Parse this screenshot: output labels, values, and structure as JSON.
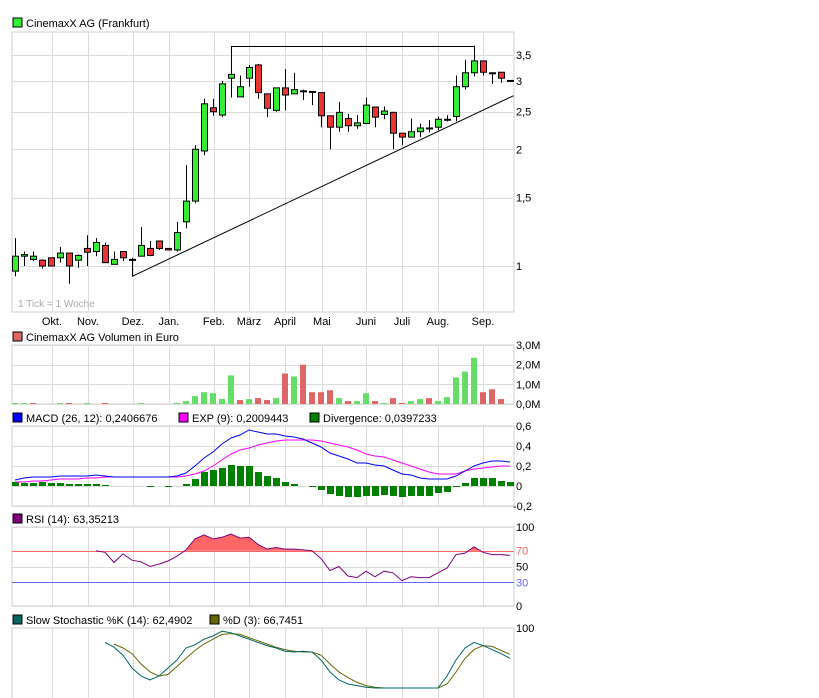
{
  "chart_data": [
    {
      "type": "candlestick",
      "title": "CinemaxX AG (Frankfurt)",
      "note": "1 Tick = 1 Woche",
      "scale": "log",
      "ylim": [
        0.85,
        3.95
      ],
      "yticks": [
        {
          "v": 3.5,
          "label": "3,5"
        },
        {
          "v": 3,
          "label": "3"
        },
        {
          "v": 2.5,
          "label": "2,5"
        },
        {
          "v": 2,
          "label": "2"
        },
        {
          "v": 1.5,
          "label": "1,5"
        },
        {
          "v": 1,
          "label": "1"
        }
      ],
      "months": [
        {
          "label": "Okt.",
          "week": 5.1
        },
        {
          "label": "Nov.",
          "week": 9.1
        },
        {
          "label": "Dez.",
          "week": 14.1
        },
        {
          "label": "Jan.",
          "week": 18.1
        },
        {
          "label": "Feb.",
          "week": 23.1
        },
        {
          "label": "März",
          "week": 27
        },
        {
          "label": "April",
          "week": 31
        },
        {
          "label": "Mai",
          "week": 35.1
        },
        {
          "label": "Juni",
          "week": 40
        },
        {
          "label": "Juli",
          "week": 44
        },
        {
          "label": "Aug.",
          "week": 48
        },
        {
          "label": "Sep.",
          "week": 53
        }
      ],
      "ohlc": [
        [
          0.97,
          1.18,
          0.94,
          1.06
        ],
        [
          1.06,
          1.09,
          1.0,
          1.07
        ],
        [
          1.04,
          1.09,
          1.03,
          1.06
        ],
        [
          1.035,
          1.04,
          0.985,
          1.0
        ],
        [
          1.05,
          1.05,
          1.0,
          1.0
        ],
        [
          1.05,
          1.12,
          1.02,
          1.08
        ],
        [
          1.08,
          1.08,
          0.9,
          1.0
        ],
        [
          1.035,
          1.07,
          0.99,
          1.065
        ],
        [
          1.11,
          1.2,
          1.0,
          1.085
        ],
        [
          1.09,
          1.18,
          1.06,
          1.15
        ],
        [
          1.13,
          1.15,
          1.02,
          1.02
        ],
        [
          1.01,
          1.09,
          1.01,
          1.04
        ],
        [
          1.09,
          1.09,
          1.03,
          1.05
        ],
        [
          1.04,
          1.05,
          0.94,
          1.04
        ],
        [
          1.06,
          1.26,
          1.06,
          1.13
        ],
        [
          1.11,
          1.16,
          1.06,
          1.065
        ],
        [
          1.16,
          1.16,
          1.1,
          1.11
        ],
        [
          1.11,
          1.11,
          1.1,
          1.1
        ],
        [
          1.1,
          1.3,
          1.09,
          1.22
        ],
        [
          1.3,
          1.82,
          1.25,
          1.47
        ],
        [
          1.47,
          2.05,
          1.45,
          2.0
        ],
        [
          1.98,
          2.7,
          1.93,
          2.62
        ],
        [
          2.56,
          2.7,
          2.44,
          2.5
        ],
        [
          2.45,
          3.0,
          2.42,
          2.95
        ],
        [
          3.05,
          3.12,
          2.72,
          3.12
        ],
        [
          2.73,
          3.1,
          2.73,
          2.9
        ],
        [
          3.05,
          3.3,
          2.9,
          3.25
        ],
        [
          3.3,
          3.32,
          2.7,
          2.8
        ],
        [
          2.78,
          2.78,
          2.42,
          2.55
        ],
        [
          2.52,
          2.88,
          2.5,
          2.88
        ],
        [
          2.88,
          3.22,
          2.52,
          2.76
        ],
        [
          2.78,
          3.15,
          2.78,
          2.85
        ],
        [
          2.83,
          2.85,
          2.68,
          2.83
        ],
        [
          2.82,
          2.82,
          2.6,
          2.8
        ],
        [
          2.8,
          2.8,
          2.28,
          2.44
        ],
        [
          2.44,
          2.44,
          2.0,
          2.28
        ],
        [
          2.28,
          2.65,
          2.22,
          2.49
        ],
        [
          2.4,
          2.47,
          2.22,
          2.3
        ],
        [
          2.3,
          2.45,
          2.26,
          2.34
        ],
        [
          2.33,
          2.72,
          2.33,
          2.6
        ],
        [
          2.57,
          2.57,
          2.28,
          2.42
        ],
        [
          2.46,
          2.58,
          2.39,
          2.51
        ],
        [
          2.49,
          2.5,
          2.0,
          2.2
        ],
        [
          2.2,
          2.2,
          2.05,
          2.15
        ],
        [
          2.15,
          2.4,
          2.15,
          2.22
        ],
        [
          2.22,
          2.33,
          2.15,
          2.27
        ],
        [
          2.27,
          2.38,
          2.21,
          2.27
        ],
        [
          2.28,
          2.43,
          2.24,
          2.39
        ],
        [
          2.39,
          2.45,
          2.36,
          2.39
        ],
        [
          2.43,
          3.1,
          2.36,
          2.9
        ],
        [
          2.9,
          3.4,
          2.85,
          3.15
        ],
        [
          3.15,
          3.7,
          3.08,
          3.38
        ],
        [
          3.38,
          3.38,
          3.1,
          3.16
        ],
        [
          3.15,
          3.16,
          2.95,
          3.14
        ],
        [
          3.16,
          3.16,
          2.97,
          3.05
        ],
        [
          3.01,
          3.01,
          2.98,
          3.0
        ]
      ],
      "annotations": {
        "resistance": {
          "price": 3.7,
          "from_week": 25,
          "to_week": 52
        },
        "trendline": {
          "from": [
            14,
            0.94
          ],
          "to": [
            56.4,
            2.75
          ]
        }
      }
    },
    {
      "type": "bar",
      "title": "CinemaxX AG Volumen in Euro",
      "unit": "M",
      "ylim": [
        0,
        3.0
      ],
      "yticks": [
        {
          "v": 3,
          "label": "3,0M"
        },
        {
          "v": 2,
          "label": "2,0M"
        },
        {
          "v": 1,
          "label": "1,0M"
        },
        {
          "v": 0,
          "label": "0,0M"
        }
      ],
      "values": [
        0.05,
        0.05,
        0.05,
        0,
        0,
        0.05,
        0.05,
        0,
        0.05,
        0,
        0.05,
        0,
        0,
        0,
        0.05,
        0,
        0,
        0,
        0.05,
        0.15,
        0.4,
        0.6,
        0.55,
        0.25,
        1.45,
        0.2,
        0.25,
        0.3,
        0.2,
        0.3,
        1.55,
        1.4,
        2.0,
        0.6,
        0.6,
        0.7,
        0.3,
        0.15,
        0.15,
        0.55,
        0.15,
        0.05,
        0.3,
        0.05,
        0.15,
        0.25,
        0.3,
        0.15,
        0.35,
        1.35,
        1.65,
        2.35,
        0.6,
        0.75,
        0.25,
        0
      ],
      "up": [
        1,
        1,
        0,
        1,
        1,
        1,
        0,
        1,
        1,
        1,
        0,
        1,
        1,
        1,
        1,
        1,
        1,
        1,
        1,
        1,
        1,
        1,
        1,
        1,
        1,
        0,
        1,
        0,
        0,
        1,
        0,
        1,
        0,
        0,
        0,
        0,
        1,
        0,
        1,
        1,
        0,
        1,
        0,
        0,
        1,
        1,
        0,
        1,
        1,
        1,
        1,
        1,
        0,
        0,
        0,
        0
      ]
    },
    {
      "type": "line",
      "legend": [
        {
          "label": "MACD (26, 12): 0,2406676",
          "color": "#0000ff"
        },
        {
          "label": "EXP (9): 0,2009443",
          "color": "#ff00ff"
        },
        {
          "label": "Divergence: 0,0397233",
          "color": "#008000"
        }
      ],
      "ylim": [
        -0.2,
        0.6
      ],
      "yticks": [
        {
          "v": 0.6,
          "label": "0,6"
        },
        {
          "v": 0.4,
          "label": "0,4"
        },
        {
          "v": 0.2,
          "label": "0,2"
        },
        {
          "v": 0,
          "label": "0"
        },
        {
          "v": -0.2,
          "label": "-0,2"
        }
      ],
      "macd": [
        0.06,
        0.08,
        0.09,
        0.09,
        0.09,
        0.1,
        0.1,
        0.1,
        0.1,
        0.11,
        0.1,
        0.09,
        0.09,
        0.09,
        0.09,
        0.09,
        0.09,
        0.09,
        0.1,
        0.13,
        0.2,
        0.28,
        0.34,
        0.42,
        0.48,
        0.51,
        0.56,
        0.54,
        0.52,
        0.52,
        0.5,
        0.49,
        0.47,
        0.43,
        0.39,
        0.33,
        0.3,
        0.27,
        0.23,
        0.23,
        0.21,
        0.2,
        0.16,
        0.12,
        0.11,
        0.08,
        0.07,
        0.07,
        0.07,
        0.1,
        0.15,
        0.2,
        0.23,
        0.25,
        0.25,
        0.24
      ],
      "signal": [
        0.04,
        0.04,
        0.05,
        0.05,
        0.06,
        0.07,
        0.07,
        0.07,
        0.08,
        0.08,
        0.09,
        0.09,
        0.09,
        0.09,
        0.09,
        0.09,
        0.09,
        0.09,
        0.09,
        0.1,
        0.12,
        0.15,
        0.2,
        0.26,
        0.32,
        0.36,
        0.38,
        0.41,
        0.43,
        0.45,
        0.46,
        0.46,
        0.46,
        0.46,
        0.45,
        0.43,
        0.41,
        0.39,
        0.36,
        0.32,
        0.3,
        0.29,
        0.26,
        0.23,
        0.2,
        0.17,
        0.14,
        0.12,
        0.12,
        0.12,
        0.15,
        0.17,
        0.18,
        0.19,
        0.2,
        0.2
      ],
      "divergence": [
        0.04,
        0.03,
        0.03,
        0.04,
        0.03,
        0.03,
        0.02,
        0.02,
        0.02,
        0.02,
        0.01,
        0,
        0,
        0,
        0,
        -0.01,
        0,
        -0.01,
        0,
        0.02,
        0.07,
        0.14,
        0.16,
        0.18,
        0.21,
        0.2,
        0.2,
        0.14,
        0.1,
        0.08,
        0.04,
        0.02,
        0,
        -0.01,
        -0.04,
        -0.08,
        -0.1,
        -0.11,
        -0.11,
        -0.1,
        -0.1,
        -0.09,
        -0.1,
        -0.11,
        -0.1,
        -0.1,
        -0.1,
        -0.07,
        -0.06,
        -0.01,
        0.03,
        0.08,
        0.08,
        0.08,
        0.05,
        0.04
      ]
    },
    {
      "type": "line",
      "legend": [
        {
          "label": "RSI (14): 63,35213",
          "color": "#800080"
        }
      ],
      "ylim": [
        0,
        100
      ],
      "yticks": [
        {
          "v": 100,
          "label": "100"
        },
        {
          "v": 70,
          "label": "70",
          "color": "#ff6666"
        },
        {
          "v": 50,
          "label": "50"
        },
        {
          "v": 30,
          "label": "30",
          "color": "#6666ff"
        },
        {
          "v": 0,
          "label": "0"
        }
      ],
      "values": [
        null,
        null,
        null,
        null,
        null,
        null,
        null,
        null,
        null,
        70,
        68,
        55,
        66,
        58,
        56,
        50,
        53,
        57,
        63,
        71,
        85,
        90,
        85,
        87,
        91,
        86,
        87,
        78,
        72,
        74,
        72,
        72,
        71,
        70,
        60,
        45,
        50,
        38,
        36,
        44,
        37,
        44,
        42,
        32,
        37,
        36,
        36,
        42,
        48,
        65,
        67,
        75,
        68,
        65,
        65,
        64
      ]
    },
    {
      "type": "line",
      "legend": [
        {
          "label": "Slow Stochastic %K (14): 62,4902",
          "color": "#006666"
        },
        {
          "label": "%D (3): 66,7451",
          "color": "#666600"
        }
      ],
      "ylim": [
        0,
        100
      ],
      "yticks": [
        {
          "v": 100,
          "label": "100"
        }
      ],
      "k": [
        null,
        null,
        null,
        null,
        null,
        null,
        null,
        null,
        null,
        null,
        82,
        76,
        66,
        50,
        40,
        35,
        40,
        50,
        60,
        75,
        79,
        86,
        90,
        96,
        94,
        90,
        86,
        82,
        78,
        75,
        71,
        70,
        71,
        70,
        60,
        45,
        35,
        30,
        28,
        26,
        25,
        25,
        25,
        25,
        25,
        25,
        25,
        25,
        40,
        60,
        75,
        82,
        78,
        73,
        68,
        62
      ],
      "d": [
        null,
        null,
        null,
        null,
        null,
        null,
        null,
        null,
        null,
        null,
        null,
        80,
        75,
        68,
        55,
        45,
        40,
        42,
        52,
        62,
        72,
        80,
        86,
        92,
        93,
        92,
        88,
        84,
        80,
        76,
        73,
        71,
        70,
        70,
        66,
        55,
        45,
        38,
        32,
        28,
        26,
        25,
        25,
        25,
        25,
        25,
        25,
        25,
        30,
        45,
        62,
        73,
        78,
        77,
        72,
        67
      ]
    }
  ]
}
